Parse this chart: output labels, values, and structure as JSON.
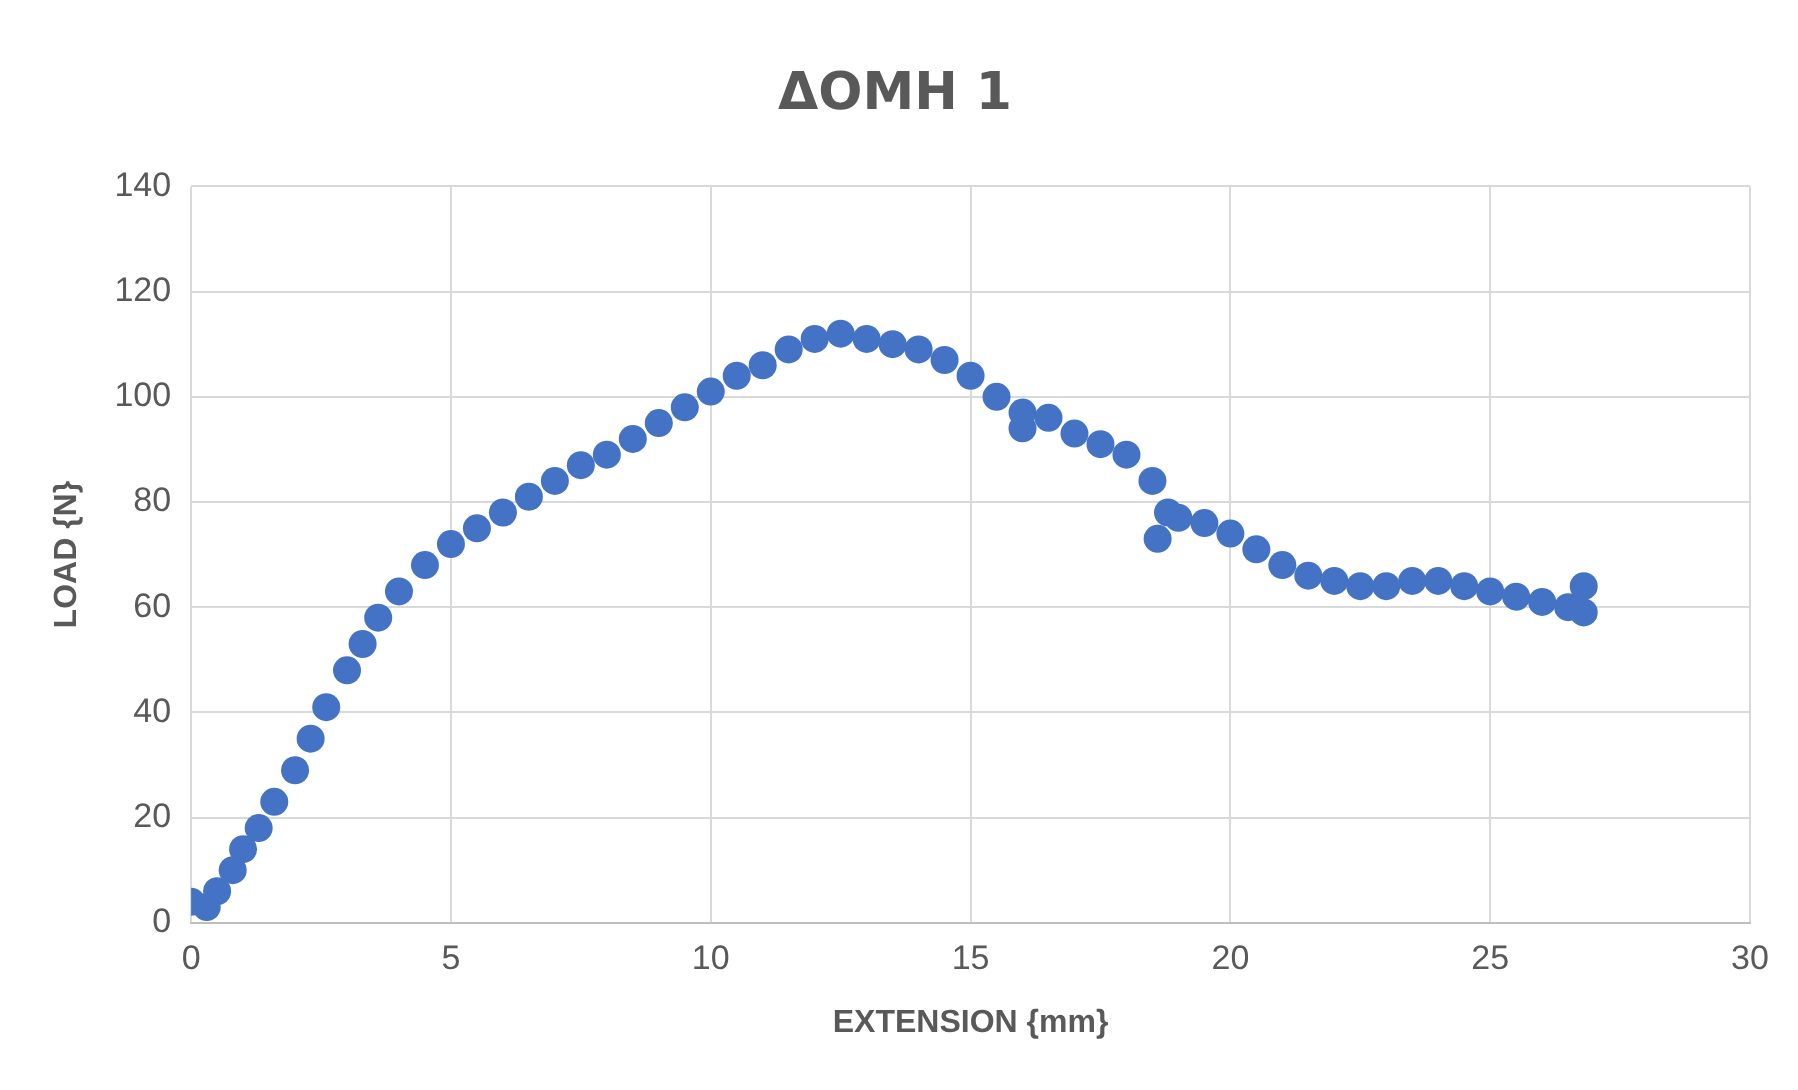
{
  "chart_data": {
    "type": "scatter",
    "title": "ΔΟΜΗ 1",
    "xlabel": "EXTENSION {mm}",
    "ylabel": "LOAD {N}",
    "x": [
      0,
      0.3,
      0.5,
      0.8,
      1,
      1.3,
      1.6,
      2,
      2.3,
      2.6,
      3,
      3.3,
      3.6,
      4,
      4.5,
      5,
      5.5,
      6,
      6.5,
      7,
      7.5,
      8,
      8.5,
      9,
      9.5,
      10,
      10.5,
      11,
      11.5,
      12,
      12.5,
      13,
      13.5,
      14,
      14.5,
      15,
      15.5,
      16,
      16,
      16.5,
      17,
      17.5,
      18,
      18.5,
      18.6,
      18.8,
      19,
      19.5,
      20,
      20.5,
      21,
      21.5,
      22,
      22.5,
      23,
      23.5,
      24,
      24.5,
      25,
      25.5,
      26,
      26.5,
      26.8,
      26.8
    ],
    "series": [
      {
        "color": "#4472c4",
        "values": [
          4,
          3,
          6,
          10,
          14,
          18,
          23,
          29,
          35,
          41,
          48,
          53,
          58,
          63,
          68,
          72,
          75,
          78,
          81,
          84,
          87,
          89,
          92,
          95,
          98,
          101,
          104,
          106,
          109,
          111,
          112,
          111,
          110,
          109,
          107,
          104,
          100,
          97,
          94,
          96,
          93,
          91,
          89,
          84,
          73,
          78,
          77,
          76,
          74,
          71,
          68,
          66,
          65,
          64,
          64,
          65,
          65,
          64,
          63,
          62,
          61,
          60,
          59,
          64
        ]
      }
    ],
    "xlim": [
      0,
      30
    ],
    "xticks": [
      0,
      5,
      10,
      15,
      20,
      25,
      30
    ],
    "ylim": [
      0,
      140
    ],
    "yticks": [
      0,
      20,
      40,
      60,
      80,
      100,
      120,
      140
    ],
    "grid": true,
    "legend": false,
    "marker": "circle"
  }
}
